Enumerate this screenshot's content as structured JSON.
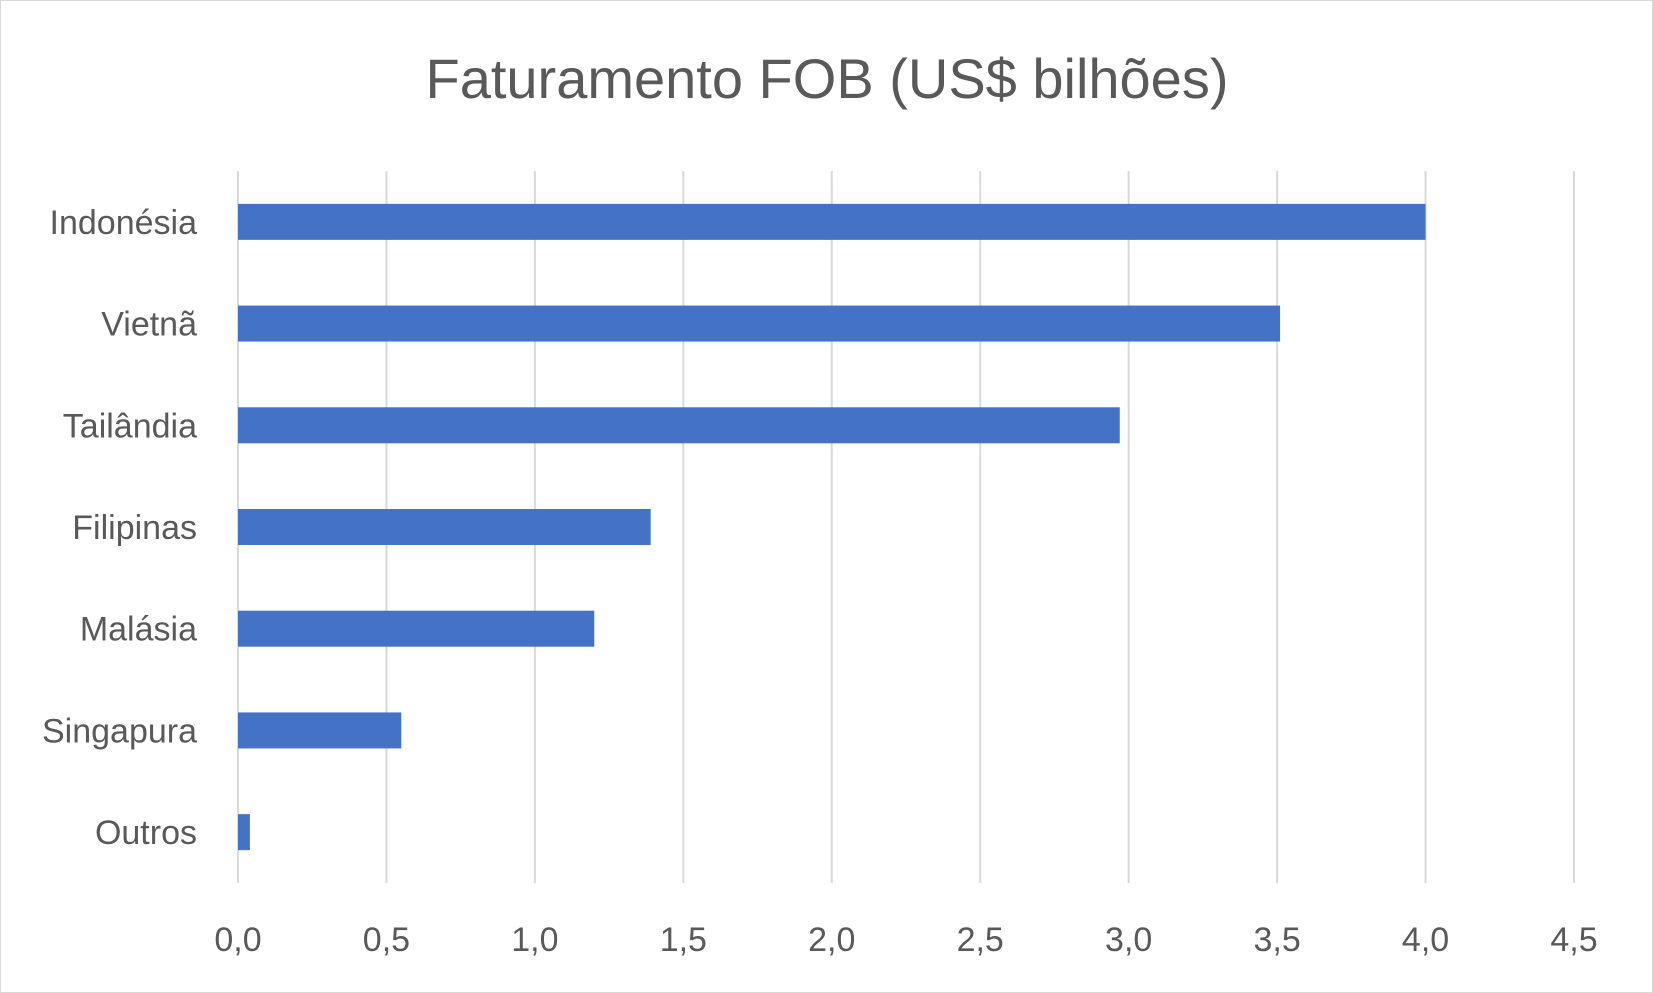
{
  "chart_data": {
    "type": "bar",
    "orientation": "horizontal",
    "title": "Faturamento FOB (US$ bilhões)",
    "xlabel": "",
    "ylabel": "",
    "categories": [
      "Indonésia",
      "Vietnã",
      "Tailândia",
      "Filipinas",
      "Malásia",
      "Singapura",
      "Outros"
    ],
    "values": [
      4.0,
      3.51,
      2.97,
      1.39,
      1.2,
      0.55,
      0.04
    ],
    "xlim": [
      0,
      4.5
    ],
    "xticks": [
      "0,0",
      "0,5",
      "1,0",
      "1,5",
      "2,0",
      "2,5",
      "3,0",
      "3,5",
      "4,0",
      "4,5"
    ],
    "grid": "vertical",
    "legend": "none",
    "bar_color": "#4472C4"
  }
}
